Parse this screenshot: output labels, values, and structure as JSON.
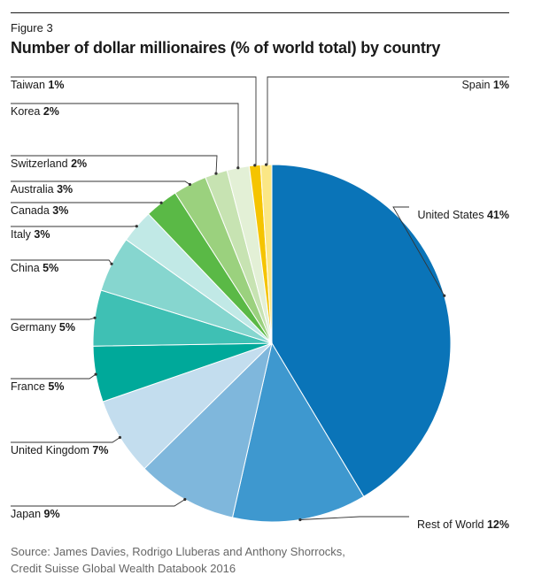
{
  "figure_label": "Figure 3",
  "title": "Number of dollar millionaires (% of world total) by country",
  "source_line1": "Source: James Davies, Rodrigo Lluberas and Anthony Shorrocks,",
  "source_line2": "Credit Suisse Global Wealth Databook 2016",
  "chart_data": {
    "type": "pie",
    "title": "Number of dollar millionaires (% of world total) by country",
    "unit": "%",
    "start": "12 o'clock",
    "direction": "clockwise",
    "slices": [
      {
        "label": "United States",
        "value": 41,
        "display": "41%",
        "color": "#0a74b8"
      },
      {
        "label": "Rest of World",
        "value": 12,
        "display": "12%",
        "color": "#3e98cf"
      },
      {
        "label": "Japan",
        "value": 9,
        "display": "9%",
        "color": "#7fb7dc"
      },
      {
        "label": "United Kingdom",
        "value": 7,
        "display": "7%",
        "color": "#c3ddee"
      },
      {
        "label": "France",
        "value": 5,
        "display": "5%",
        "color": "#00a99a"
      },
      {
        "label": "Germany",
        "value": 5,
        "display": "5%",
        "color": "#3fc0b4"
      },
      {
        "label": "China",
        "value": 5,
        "display": "5%",
        "color": "#86d6cf"
      },
      {
        "label": "Italy",
        "value": 3,
        "display": "3%",
        "color": "#c1e9e6"
      },
      {
        "label": "Canada",
        "value": 3,
        "display": "3%",
        "color": "#5ab946"
      },
      {
        "label": "Australia",
        "value": 3,
        "display": "3%",
        "color": "#9bd17e"
      },
      {
        "label": "Switzerland",
        "value": 2,
        "display": "2%",
        "color": "#c7e3b2"
      },
      {
        "label": "Korea",
        "value": 2,
        "display": "2%",
        "color": "#e3f0d6"
      },
      {
        "label": "Taiwan",
        "value": 1,
        "display": "1%",
        "color": "#f5c400"
      },
      {
        "label": "Spain",
        "value": 1,
        "display": "1%",
        "color": "#fbe785"
      }
    ]
  }
}
